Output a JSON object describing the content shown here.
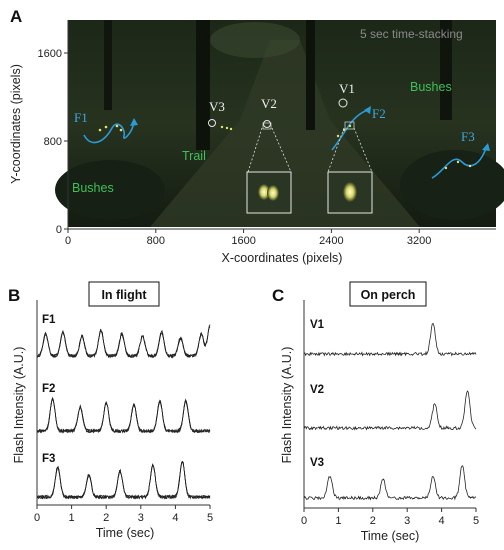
{
  "panel_a": {
    "letter": "A",
    "stacking_note": "5 sec time-stacking",
    "x_axis_label": "X-coordinates (pixels)",
    "y_axis_label": "Y-coordinates (pixels)",
    "x_ticks": [
      "0",
      "800",
      "1600",
      "2400",
      "3200"
    ],
    "y_ticks": [
      "0",
      "800",
      "1600"
    ],
    "region_labels": [
      "Bushes",
      "Trail",
      "Bushes"
    ],
    "flight_labels": [
      "F1",
      "F2",
      "F3"
    ],
    "perch_labels": [
      "V1",
      "V2",
      "V3"
    ],
    "colors": {
      "track": "#2b9bd8",
      "region": "#3fbf5a",
      "photo_bg": "#1b2418"
    }
  },
  "panel_b": {
    "letter": "B",
    "box_title": "In flight",
    "y_axis_label": "Flash Intensity (A.U.)",
    "x_axis_label": "Time (sec)",
    "x_ticks": [
      "0",
      "1",
      "2",
      "3",
      "4",
      "5"
    ],
    "trace_labels": [
      "F1",
      "F2",
      "F3"
    ]
  },
  "panel_c": {
    "letter": "C",
    "box_title": "On perch",
    "y_axis_label": "Flash Intensity (A.U.)",
    "x_axis_label": "Time (sec)",
    "x_ticks": [
      "0",
      "1",
      "2",
      "3",
      "4",
      "5"
    ],
    "trace_labels": [
      "V1",
      "V2",
      "V3"
    ]
  },
  "chart_data": [
    {
      "type": "scatter",
      "xlabel": "X-coordinates (pixels)",
      "ylabel": "Y-coordinates (pixels)",
      "xlim": [
        0,
        3900
      ],
      "ylim": [
        0,
        1900
      ],
      "series": [
        {
          "name": "F1",
          "x": [
            200,
            280,
            360,
            430,
            500,
            560,
            610,
            640
          ],
          "y": [
            860,
            800,
            840,
            900,
            780,
            830,
            920,
            1000
          ]
        },
        {
          "name": "F2",
          "x": [
            2280,
            2340,
            2400,
            2460,
            2520,
            2570
          ],
          "y": [
            600,
            680,
            760,
            840,
            920,
            980
          ]
        },
        {
          "name": "F3",
          "x": [
            3250,
            3330,
            3410,
            3480,
            3560,
            3640,
            3720
          ],
          "y": [
            380,
            460,
            540,
            480,
            420,
            520,
            650
          ]
        },
        {
          "name": "V1",
          "x": [
            2390
          ],
          "y": [
            1150
          ]
        },
        {
          "name": "V2",
          "x": [
            1740
          ],
          "y": [
            850
          ]
        },
        {
          "name": "V3",
          "x": [
            1240
          ],
          "y": [
            870
          ]
        }
      ]
    },
    {
      "type": "line",
      "title": "In flight",
      "xlabel": "Time (sec)",
      "ylabel": "Flash Intensity (A.U.)",
      "xlim": [
        0,
        5
      ],
      "series": [
        {
          "name": "F1",
          "peaks": [
            0.25,
            0.75,
            1.3,
            1.85,
            2.45,
            3.05,
            3.6,
            4.15,
            4.75,
            5.0
          ]
        },
        {
          "name": "F2",
          "peaks": [
            0.45,
            1.25,
            2.0,
            2.8,
            3.55,
            4.3
          ]
        },
        {
          "name": "F3",
          "peaks": [
            0.6,
            1.5,
            2.4,
            3.35,
            4.2
          ]
        }
      ]
    },
    {
      "type": "line",
      "title": "On perch",
      "xlabel": "Time (sec)",
      "ylabel": "Flash Intensity (A.U.)",
      "xlim": [
        0,
        5
      ],
      "series": [
        {
          "name": "V1",
          "peaks": [
            3.75
          ]
        },
        {
          "name": "V2",
          "peaks": [
            3.8,
            4.75
          ]
        },
        {
          "name": "V3",
          "peaks": [
            0.75,
            2.3,
            3.75,
            4.6
          ]
        }
      ]
    }
  ]
}
